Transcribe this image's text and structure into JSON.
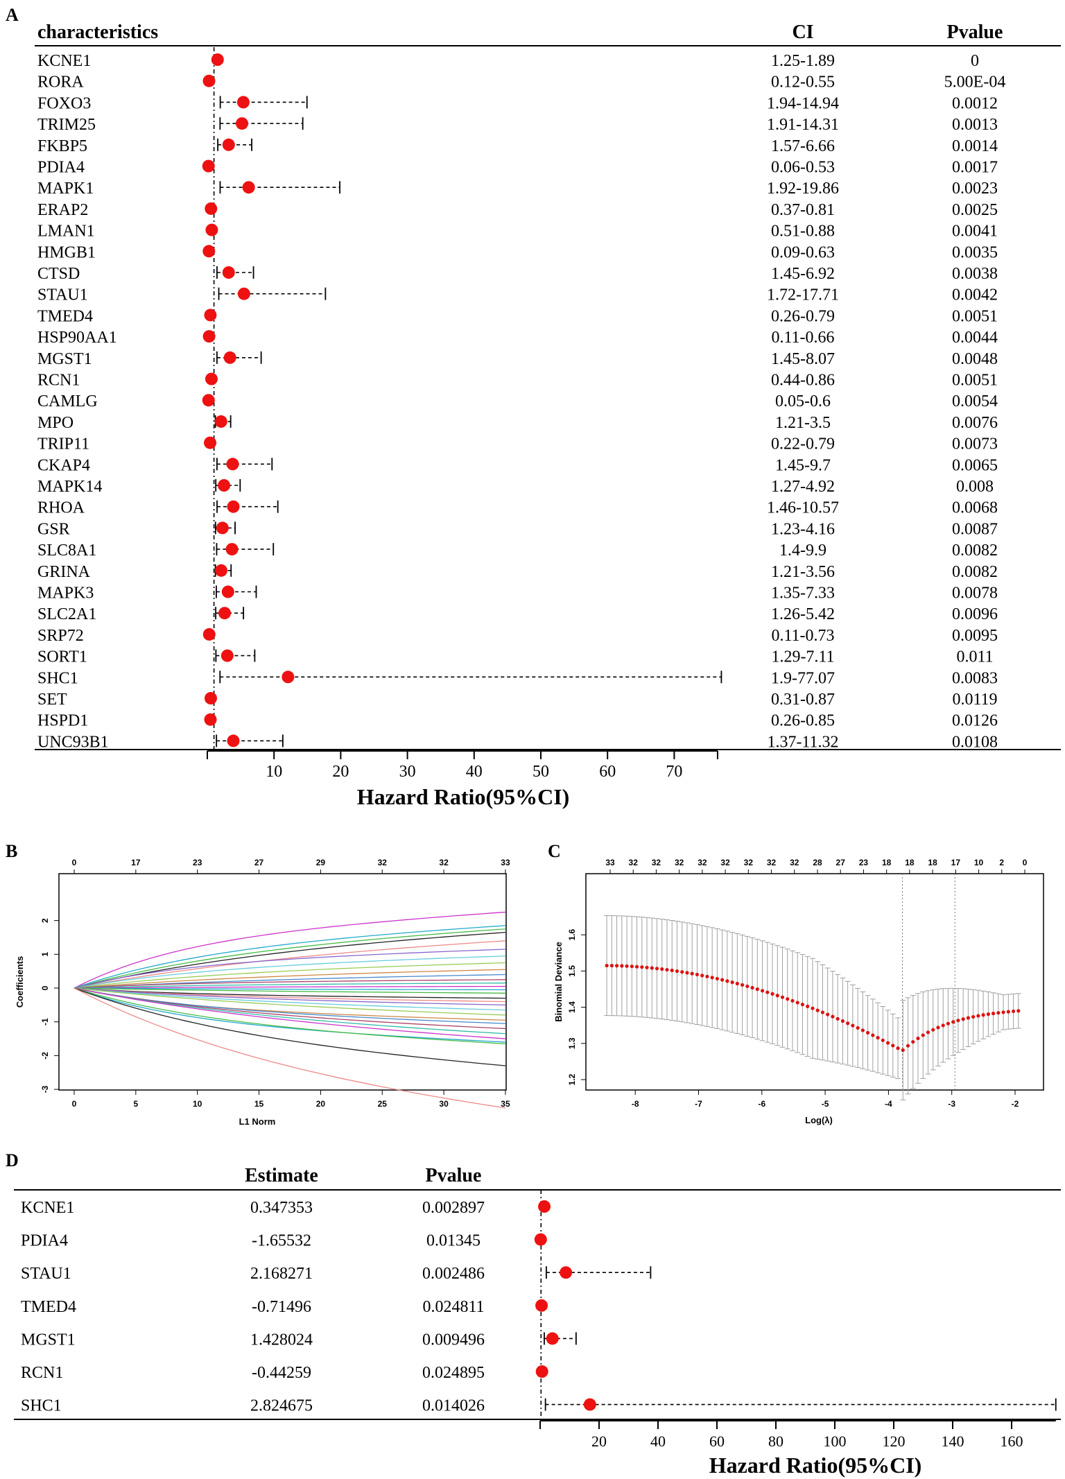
{
  "panel_a": {
    "letter": "A",
    "col_characteristics": "characteristics",
    "col_ci": "CI",
    "col_pvalue": "Pvalue",
    "xlabel": "Hazard Ratio(95%CI)",
    "ticks": [
      10,
      20,
      30,
      40,
      50,
      60,
      70
    ],
    "rows": [
      {
        "gene": "KCNE1",
        "hr": 1.54,
        "lo": 1.25,
        "hi": 1.89,
        "ci": "1.25-1.89",
        "p": "0"
      },
      {
        "gene": "RORA",
        "hr": 0.26,
        "lo": 0.12,
        "hi": 0.55,
        "ci": "0.12-0.55",
        "p": "5.00E-04"
      },
      {
        "gene": "FOXO3",
        "hr": 5.4,
        "lo": 1.94,
        "hi": 14.94,
        "ci": "1.94-14.94",
        "p": "0.0012"
      },
      {
        "gene": "TRIM25",
        "hr": 5.2,
        "lo": 1.91,
        "hi": 14.31,
        "ci": "1.91-14.31",
        "p": "0.0013"
      },
      {
        "gene": "FKBP5",
        "hr": 3.2,
        "lo": 1.57,
        "hi": 6.66,
        "ci": "1.57-6.66",
        "p": "0.0014"
      },
      {
        "gene": "PDIA4",
        "hr": 0.18,
        "lo": 0.06,
        "hi": 0.53,
        "ci": "0.06-0.53",
        "p": "0.0017"
      },
      {
        "gene": "MAPK1",
        "hr": 6.2,
        "lo": 1.92,
        "hi": 19.86,
        "ci": "1.92-19.86",
        "p": "0.0023"
      },
      {
        "gene": "ERAP2",
        "hr": 0.55,
        "lo": 0.37,
        "hi": 0.81,
        "ci": "0.37-0.81",
        "p": "0.0025"
      },
      {
        "gene": "LMAN1",
        "hr": 0.67,
        "lo": 0.51,
        "hi": 0.88,
        "ci": "0.51-0.88",
        "p": "0.0041"
      },
      {
        "gene": "HMGB1",
        "hr": 0.24,
        "lo": 0.09,
        "hi": 0.63,
        "ci": "0.09-0.63",
        "p": "0.0035"
      },
      {
        "gene": "CTSD",
        "hr": 3.2,
        "lo": 1.45,
        "hi": 6.92,
        "ci": "1.45-6.92",
        "p": "0.0038"
      },
      {
        "gene": "STAU1",
        "hr": 5.5,
        "lo": 1.72,
        "hi": 17.71,
        "ci": "1.72-17.71",
        "p": "0.0042"
      },
      {
        "gene": "TMED4",
        "hr": 0.46,
        "lo": 0.26,
        "hi": 0.79,
        "ci": "0.26-0.79",
        "p": "0.0051"
      },
      {
        "gene": "HSP90AA1",
        "hr": 0.27,
        "lo": 0.11,
        "hi": 0.66,
        "ci": "0.11-0.66",
        "p": "0.0044"
      },
      {
        "gene": "MGST1",
        "hr": 3.4,
        "lo": 1.45,
        "hi": 8.07,
        "ci": "1.45-8.07",
        "p": "0.0048"
      },
      {
        "gene": "RCN1",
        "hr": 0.62,
        "lo": 0.44,
        "hi": 0.86,
        "ci": "0.44-0.86",
        "p": "0.0051"
      },
      {
        "gene": "CAMLG",
        "hr": 0.18,
        "lo": 0.05,
        "hi": 0.6,
        "ci": "0.05-0.6",
        "p": "0.0054"
      },
      {
        "gene": "MPO",
        "hr": 2.06,
        "lo": 1.21,
        "hi": 3.5,
        "ci": "1.21-3.5",
        "p": "0.0076"
      },
      {
        "gene": "TRIP11",
        "hr": 0.42,
        "lo": 0.22,
        "hi": 0.79,
        "ci": "0.22-0.79",
        "p": "0.0073"
      },
      {
        "gene": "CKAP4",
        "hr": 3.8,
        "lo": 1.45,
        "hi": 9.7,
        "ci": "1.45-9.7",
        "p": "0.0065"
      },
      {
        "gene": "MAPK14",
        "hr": 2.5,
        "lo": 1.27,
        "hi": 4.92,
        "ci": "1.27-4.92",
        "p": "0.008"
      },
      {
        "gene": "RHOA",
        "hr": 3.9,
        "lo": 1.46,
        "hi": 10.57,
        "ci": "1.46-10.57",
        "p": "0.0068"
      },
      {
        "gene": "GSR",
        "hr": 2.27,
        "lo": 1.23,
        "hi": 4.16,
        "ci": "1.23-4.16",
        "p": "0.0087"
      },
      {
        "gene": "SLC8A1",
        "hr": 3.7,
        "lo": 1.4,
        "hi": 9.9,
        "ci": "1.4-9.9",
        "p": "0.0082"
      },
      {
        "gene": "GRINA",
        "hr": 2.08,
        "lo": 1.21,
        "hi": 3.56,
        "ci": "1.21-3.56",
        "p": "0.0082"
      },
      {
        "gene": "MAPK3",
        "hr": 3.1,
        "lo": 1.35,
        "hi": 7.33,
        "ci": "1.35-7.33",
        "p": "0.0078"
      },
      {
        "gene": "SLC2A1",
        "hr": 2.6,
        "lo": 1.26,
        "hi": 5.42,
        "ci": "1.26-5.42",
        "p": "0.0096"
      },
      {
        "gene": "SRP72",
        "hr": 0.29,
        "lo": 0.11,
        "hi": 0.73,
        "ci": "0.11-0.73",
        "p": "0.0095"
      },
      {
        "gene": "SORT1",
        "hr": 3.0,
        "lo": 1.29,
        "hi": 7.11,
        "ci": "1.29-7.11",
        "p": "0.011"
      },
      {
        "gene": "SHC1",
        "hr": 12.1,
        "lo": 1.9,
        "hi": 77.07,
        "ci": "1.9-77.07",
        "p": "0.0083"
      },
      {
        "gene": "SET",
        "hr": 0.52,
        "lo": 0.31,
        "hi": 0.87,
        "ci": "0.31-0.87",
        "p": "0.0119"
      },
      {
        "gene": "HSPD1",
        "hr": 0.47,
        "lo": 0.26,
        "hi": 0.85,
        "ci": "0.26-0.85",
        "p": "0.0126"
      },
      {
        "gene": "UNC93B1",
        "hr": 3.9,
        "lo": 1.37,
        "hi": 11.32,
        "ci": "1.37-11.32",
        "p": "0.0108"
      }
    ]
  },
  "panel_b": {
    "letter": "B",
    "xlabel": "L1 Norm",
    "ylabel": "Coefficients",
    "top_ticks": [
      "0",
      "17",
      "23",
      "27",
      "29",
      "32",
      "32",
      "33"
    ],
    "x_ticks": [
      0,
      5,
      10,
      15,
      20,
      25,
      30,
      35
    ],
    "y_ticks": [
      2,
      1,
      0,
      -1,
      -2,
      -3
    ]
  },
  "panel_c": {
    "letter": "C",
    "xlabel": "Log(λ)",
    "ylabel": "Binomial Deviance",
    "top_ticks": [
      "33",
      "32",
      "32",
      "32",
      "32",
      "32",
      "32",
      "32",
      "32",
      "28",
      "27",
      "23",
      "18",
      "18",
      "18",
      "17",
      "10",
      "2",
      "0"
    ],
    "x_ticks": [
      -8,
      -7,
      -6,
      -5,
      -4,
      -3,
      -2
    ],
    "y_ticks": [
      1.6,
      1.5,
      1.4,
      1.3,
      1.2
    ]
  },
  "panel_d": {
    "letter": "D",
    "col_estimate": "Estimate",
    "col_pvalue": "Pvalue",
    "xlabel": "Hazard Ratio(95%CI)",
    "ticks": [
      20,
      40,
      60,
      80,
      100,
      120,
      140,
      160
    ],
    "rows": [
      {
        "gene": "KCNE1",
        "estimate": "0.347353",
        "p": "0.002897",
        "hr": 1.42,
        "lo": 1.1,
        "hi": 1.8
      },
      {
        "gene": "PDIA4",
        "estimate": "-1.65532",
        "p": "0.01345",
        "hr": 0.19,
        "lo": 0.05,
        "hi": 0.7
      },
      {
        "gene": "STAU1",
        "estimate": "2.168271",
        "p": "0.002486",
        "hr": 8.74,
        "lo": 2.1,
        "hi": 37.5
      },
      {
        "gene": "TMED4",
        "estimate": "-0.71496",
        "p": "0.024811",
        "hr": 0.49,
        "lo": 0.26,
        "hi": 0.9
      },
      {
        "gene": "MGST1",
        "estimate": "1.428024",
        "p": "0.009496",
        "hr": 4.17,
        "lo": 1.4,
        "hi": 12.2
      },
      {
        "gene": "RCN1",
        "estimate": "-0.44259",
        "p": "0.024895",
        "hr": 0.64,
        "lo": 0.44,
        "hi": 0.95
      },
      {
        "gene": "SHC1",
        "estimate": "2.824675",
        "p": "0.014026",
        "hr": 16.9,
        "lo": 1.8,
        "hi": 175
      }
    ]
  },
  "colors": {
    "dot": "#ee1111",
    "line": "#000000",
    "grey": "#a0a0a0",
    "red_dot": "#dd1111"
  }
}
